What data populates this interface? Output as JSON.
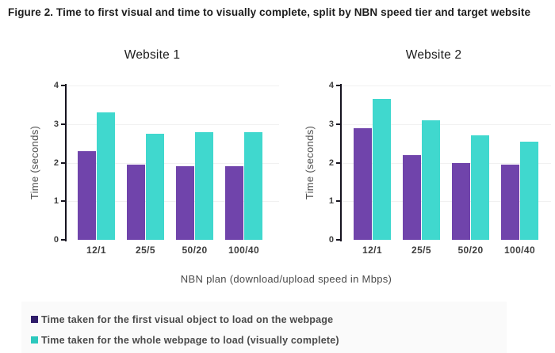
{
  "figure_title": "Figure 2. Time to first visual and time to visually complete, split by NBN speed tier and target website",
  "xlabel": "NBN plan (download/upload speed in Mbps)",
  "colors": {
    "first_visual_bar": "#7044ab",
    "visually_complete_bar": "#40d8ce",
    "legend_first_visual_swatch": "#2f1c6a",
    "legend_visually_complete_swatch": "#2cc8bd",
    "axis": "#16131f",
    "gridline": "#f1f1f1",
    "legend_background": "#fafafa"
  },
  "legend": {
    "items": [
      {
        "label": "Time taken for the first visual object to load on the webpage",
        "color": "#2f1c6a"
      },
      {
        "label": "Time taken for the whole webpage to load (visually complete)",
        "color": "#2cc8bd"
      }
    ]
  },
  "chart_data": [
    {
      "type": "bar",
      "title": "Website 1",
      "categories": [
        "12/1",
        "25/5",
        "50/20",
        "100/40"
      ],
      "series": [
        {
          "name": "Time taken for the first visual object to load on the webpage",
          "color": "#7044ab",
          "values": [
            2.3,
            1.95,
            1.9,
            1.9
          ]
        },
        {
          "name": "Time taken for the whole webpage to load (visually complete)",
          "color": "#40d8ce",
          "values": [
            3.3,
            2.75,
            2.8,
            2.8
          ]
        }
      ],
      "xlabel": "NBN plan (download/upload speed in Mbps)",
      "ylabel": "Time (seconds)",
      "ylim": [
        0,
        4
      ],
      "yticks": [
        0,
        1,
        2,
        3,
        4
      ],
      "grid": true,
      "legend_position": "bottom"
    },
    {
      "type": "bar",
      "title": "Website 2",
      "categories": [
        "12/1",
        "25/5",
        "50/20",
        "100/40"
      ],
      "series": [
        {
          "name": "Time taken for the first visual object to load on the webpage",
          "color": "#7044ab",
          "values": [
            2.9,
            2.2,
            2.0,
            1.95
          ]
        },
        {
          "name": "Time taken for the whole webpage to load (visually complete)",
          "color": "#40d8ce",
          "values": [
            3.65,
            3.1,
            2.7,
            2.55
          ]
        }
      ],
      "xlabel": "NBN plan (download/upload speed in Mbps)",
      "ylabel": "Time (seconds)",
      "ylim": [
        0,
        4
      ],
      "yticks": [
        0,
        1,
        2,
        3,
        4
      ],
      "grid": true,
      "legend_position": "bottom"
    }
  ]
}
